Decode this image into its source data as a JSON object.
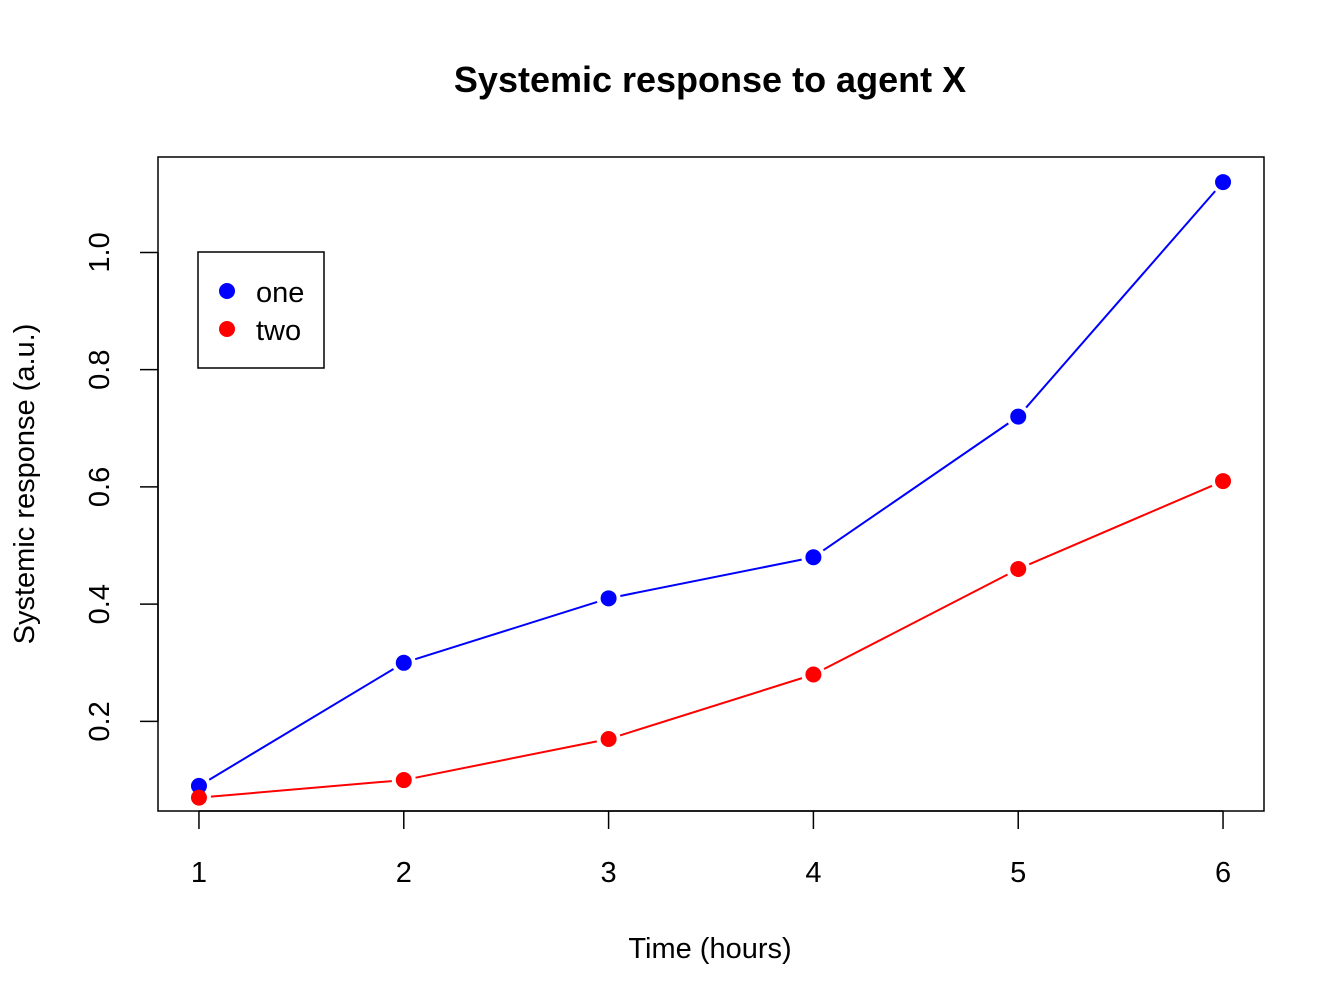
{
  "chart_data": {
    "type": "line",
    "title": "Systemic response to agent X",
    "xlabel": "Time (hours)",
    "ylabel": "Systemic response (a.u.)",
    "x": [
      1,
      2,
      3,
      4,
      5,
      6
    ],
    "x_ticks": [
      "1",
      "2",
      "3",
      "4",
      "5",
      "6"
    ],
    "y_ticks": [
      "0.2",
      "0.4",
      "0.6",
      "0.8",
      "1.0"
    ],
    "y_tick_values": [
      0.2,
      0.4,
      0.6,
      0.8,
      1.0
    ],
    "xlim": [
      0.8,
      6.2
    ],
    "ylim": [
      0.0472,
      1.1628
    ],
    "grid": false,
    "legend_position": "top-left",
    "series": [
      {
        "name": "one",
        "color": "#0000ff",
        "marker": "filled-circle",
        "values": [
          0.09,
          0.3,
          0.41,
          0.48,
          0.72,
          1.12
        ]
      },
      {
        "name": "two",
        "color": "#ff0000",
        "marker": "filled-circle",
        "values": [
          0.07,
          0.1,
          0.17,
          0.28,
          0.46,
          0.61
        ]
      }
    ]
  }
}
